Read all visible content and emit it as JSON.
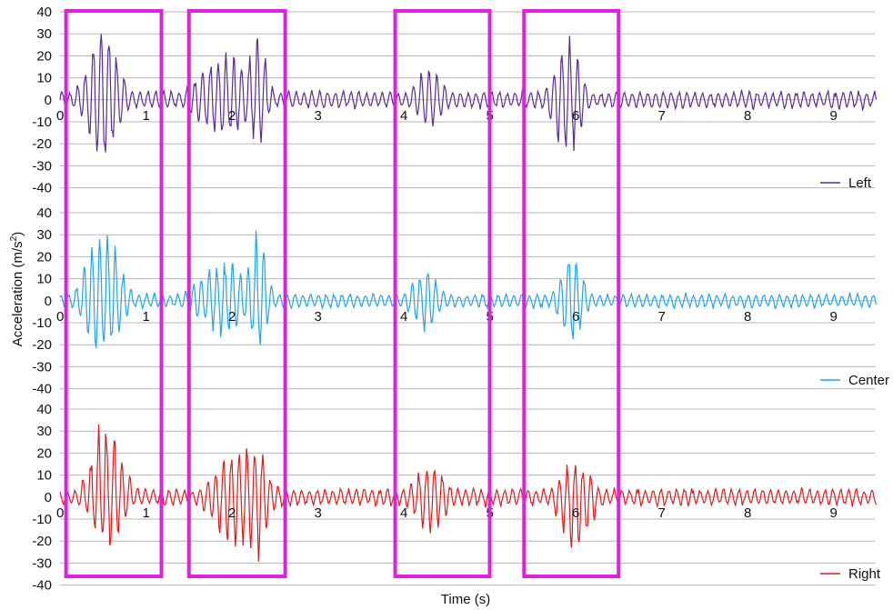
{
  "chart_data": {
    "type": "line",
    "xlabel": "Time (s)",
    "ylabel": "Acceleration (m/s²)",
    "ylabel_main": "Acceleration (m/s",
    "ylabel_sup": "2",
    "ylabel_close": ")",
    "x_ticks": [
      0,
      1,
      2,
      3,
      4,
      5,
      6,
      7,
      8,
      9
    ],
    "xlim": [
      0,
      9.5
    ],
    "grid": true,
    "legend_position": "right",
    "highlight_color": "#e020e0",
    "highlight_windows": [
      [
        0.07,
        1.18
      ],
      [
        1.5,
        2.62
      ],
      [
        3.9,
        5.0
      ],
      [
        5.4,
        6.5
      ]
    ],
    "panels": [
      {
        "name": "Left",
        "color": "#5b2c91",
        "ylim": [
          -40,
          40
        ],
        "y_ticks": [
          -40,
          -30,
          -20,
          -10,
          0,
          10,
          20,
          30,
          40
        ],
        "bursts": [
          {
            "t": 0.5,
            "amp": 37,
            "neg": 30,
            "dur": 0.35
          },
          {
            "t": 1.9,
            "amp": 24,
            "neg": 20,
            "dur": 0.55
          },
          {
            "t": 2.3,
            "amp": 38,
            "neg": 22,
            "dur": 0.2
          },
          {
            "t": 4.3,
            "amp": 18,
            "neg": 13,
            "dur": 0.3
          },
          {
            "t": 5.9,
            "amp": 31,
            "neg": 28,
            "dur": 0.3
          }
        ],
        "base_amp": 5
      },
      {
        "name": "Center",
        "color": "#1ea6e6",
        "ylim": [
          -40,
          40
        ],
        "y_ticks": [
          -40,
          -30,
          -20,
          -10,
          0,
          10,
          20,
          30,
          40
        ],
        "bursts": [
          {
            "t": 0.5,
            "amp": 40,
            "neg": 29,
            "dur": 0.35
          },
          {
            "t": 1.9,
            "amp": 20,
            "neg": 17,
            "dur": 0.55
          },
          {
            "t": 2.3,
            "amp": 33,
            "neg": 24,
            "dur": 0.2
          },
          {
            "t": 4.25,
            "amp": 15,
            "neg": 15,
            "dur": 0.3
          },
          {
            "t": 5.95,
            "amp": 26,
            "neg": 21,
            "dur": 0.25
          }
        ],
        "base_amp": 4
      },
      {
        "name": "Right",
        "color": "#e31a1a",
        "ylim": [
          -40,
          40
        ],
        "y_ticks": [
          -40,
          -30,
          -20,
          -10,
          0,
          10,
          20,
          30,
          40
        ],
        "bursts": [
          {
            "t": 0.55,
            "amp": 40,
            "neg": 24,
            "dur": 0.35
          },
          {
            "t": 2.1,
            "amp": 25,
            "neg": 26,
            "dur": 0.55
          },
          {
            "t": 2.3,
            "amp": 30,
            "neg": 32,
            "dur": 0.2
          },
          {
            "t": 4.3,
            "amp": 17,
            "neg": 18,
            "dur": 0.35
          },
          {
            "t": 6.0,
            "amp": 18,
            "neg": 27,
            "dur": 0.35
          }
        ],
        "base_amp": 5
      }
    ]
  }
}
